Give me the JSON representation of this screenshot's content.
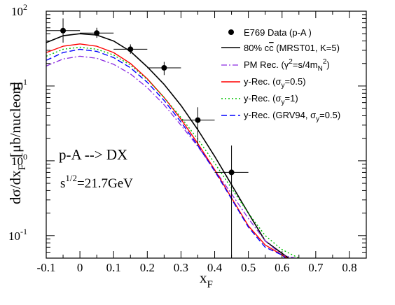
{
  "chart_data": {
    "type": "line",
    "xlabel": "x",
    "xlabel_sub": "F",
    "ylabel_main": "dσ/dx",
    "ylabel_sub": "F",
    "ylabel_unit": "[μb/nucleon]",
    "xlim": [
      -0.1,
      0.85
    ],
    "ylim": [
      0.05,
      100
    ],
    "yscale": "log",
    "x_ticks": [
      -0.1,
      0,
      0.1,
      0.2,
      0.3,
      0.4,
      0.5,
      0.6,
      0.7,
      0.8
    ],
    "x_tick_labels": [
      "-0.1",
      "0",
      "0.1",
      "0.2",
      "0.3",
      "0.4",
      "0.5",
      "0.6",
      "0.7",
      "0.8"
    ],
    "y_ticks": [
      {
        "value": 0.1,
        "base": "10",
        "exp": "-1"
      },
      {
        "value": 1,
        "base": "10",
        "exp": "0"
      },
      {
        "value": 10,
        "base": "10",
        "exp": "1"
      },
      {
        "value": 100,
        "base": "10",
        "exp": "2"
      }
    ],
    "annotation": {
      "process": "p-A --> DX",
      "energy_base": "s",
      "energy_exp": "1/2",
      "energy_value": "=21.7GeV"
    },
    "data_points": {
      "name": "E769 Data (p-A )",
      "color": "#000000",
      "points": [
        {
          "x": -0.05,
          "y": 55,
          "xerr": 0.05,
          "ylo": 38,
          "yhi": 80
        },
        {
          "x": 0.05,
          "y": 51,
          "xerr": 0.05,
          "ylo": 44,
          "yhi": 60
        },
        {
          "x": 0.15,
          "y": 31,
          "xerr": 0.05,
          "ylo": 27,
          "yhi": 36
        },
        {
          "x": 0.25,
          "y": 17.5,
          "xerr": 0.05,
          "ylo": 14,
          "yhi": 21
        },
        {
          "x": 0.35,
          "y": 3.5,
          "xerr": 0.05,
          "ylo": 1.6,
          "yhi": 5.2
        },
        {
          "x": 0.45,
          "y": 0.7,
          "xerr": 0.05,
          "ylo": 0.05,
          "yhi": 1.6
        }
      ]
    },
    "series": [
      {
        "legend_parts": [
          "80% c",
          "c",
          " (MRST01, K=5)"
        ],
        "color": "#000000",
        "dash": "",
        "width": 1.6,
        "x": [
          -0.1,
          -0.05,
          0,
          0.05,
          0.1,
          0.15,
          0.2,
          0.25,
          0.3,
          0.35,
          0.4,
          0.45,
          0.5,
          0.55,
          0.6,
          0.62
        ],
        "y": [
          38,
          47,
          50,
          48,
          40,
          29,
          18,
          10.5,
          5.5,
          2.6,
          1.15,
          0.48,
          0.2,
          0.085,
          0.058,
          0.05
        ]
      },
      {
        "legend_parts": [
          "PM Rec. (γ",
          "2",
          "=s/4m",
          "N",
          "2",
          ")"
        ],
        "color": "#8a2be2",
        "dash": "8,3,2,3",
        "width": 1.3,
        "x": [
          -0.1,
          -0.05,
          0,
          0.05,
          0.1,
          0.15,
          0.2,
          0.25,
          0.3,
          0.35,
          0.4,
          0.45,
          0.5,
          0.55,
          0.6,
          0.64
        ],
        "y": [
          18.5,
          23,
          25,
          23.5,
          19.5,
          14.5,
          9.5,
          5.6,
          3.0,
          1.55,
          0.76,
          0.36,
          0.17,
          0.085,
          0.055,
          0.05
        ]
      },
      {
        "legend_parts": [
          "y-Rec. (σ",
          "y",
          "=0.5)"
        ],
        "color": "#ff0000",
        "dash": "",
        "width": 1.4,
        "x": [
          -0.1,
          -0.05,
          0,
          0.05,
          0.1,
          0.15,
          0.2,
          0.25,
          0.3,
          0.35,
          0.4,
          0.45,
          0.5,
          0.55,
          0.6,
          0.615
        ],
        "y": [
          28,
          34,
          36.5,
          34,
          28,
          20,
          12.5,
          7.0,
          3.6,
          1.7,
          0.76,
          0.32,
          0.135,
          0.075,
          0.055,
          0.05
        ]
      },
      {
        "legend_parts": [
          "y-Rec. (σ",
          "y",
          "=1)"
        ],
        "color": "#00c000",
        "dash": "2,3",
        "width": 1.4,
        "x": [
          -0.1,
          -0.05,
          0,
          0.05,
          0.1,
          0.15,
          0.2,
          0.25,
          0.3,
          0.35,
          0.4,
          0.45,
          0.5,
          0.55,
          0.6,
          0.65
        ],
        "y": [
          25,
          31,
          33,
          31,
          26,
          19,
          12.2,
          7.0,
          3.8,
          1.95,
          0.93,
          0.43,
          0.2,
          0.1,
          0.065,
          0.05
        ]
      },
      {
        "legend_parts": [
          "y-Rec. (GRV94, σ",
          "y",
          "=0.5)"
        ],
        "color": "#0000ff",
        "dash": "8,4",
        "width": 1.4,
        "x": [
          -0.1,
          -0.05,
          0,
          0.05,
          0.1,
          0.15,
          0.2,
          0.25,
          0.3,
          0.35,
          0.4,
          0.45,
          0.5,
          0.55,
          0.6,
          0.61
        ],
        "y": [
          22,
          28,
          31,
          29,
          24,
          17.5,
          11.2,
          6.4,
          3.3,
          1.6,
          0.73,
          0.31,
          0.13,
          0.07,
          0.055,
          0.05
        ]
      }
    ]
  }
}
